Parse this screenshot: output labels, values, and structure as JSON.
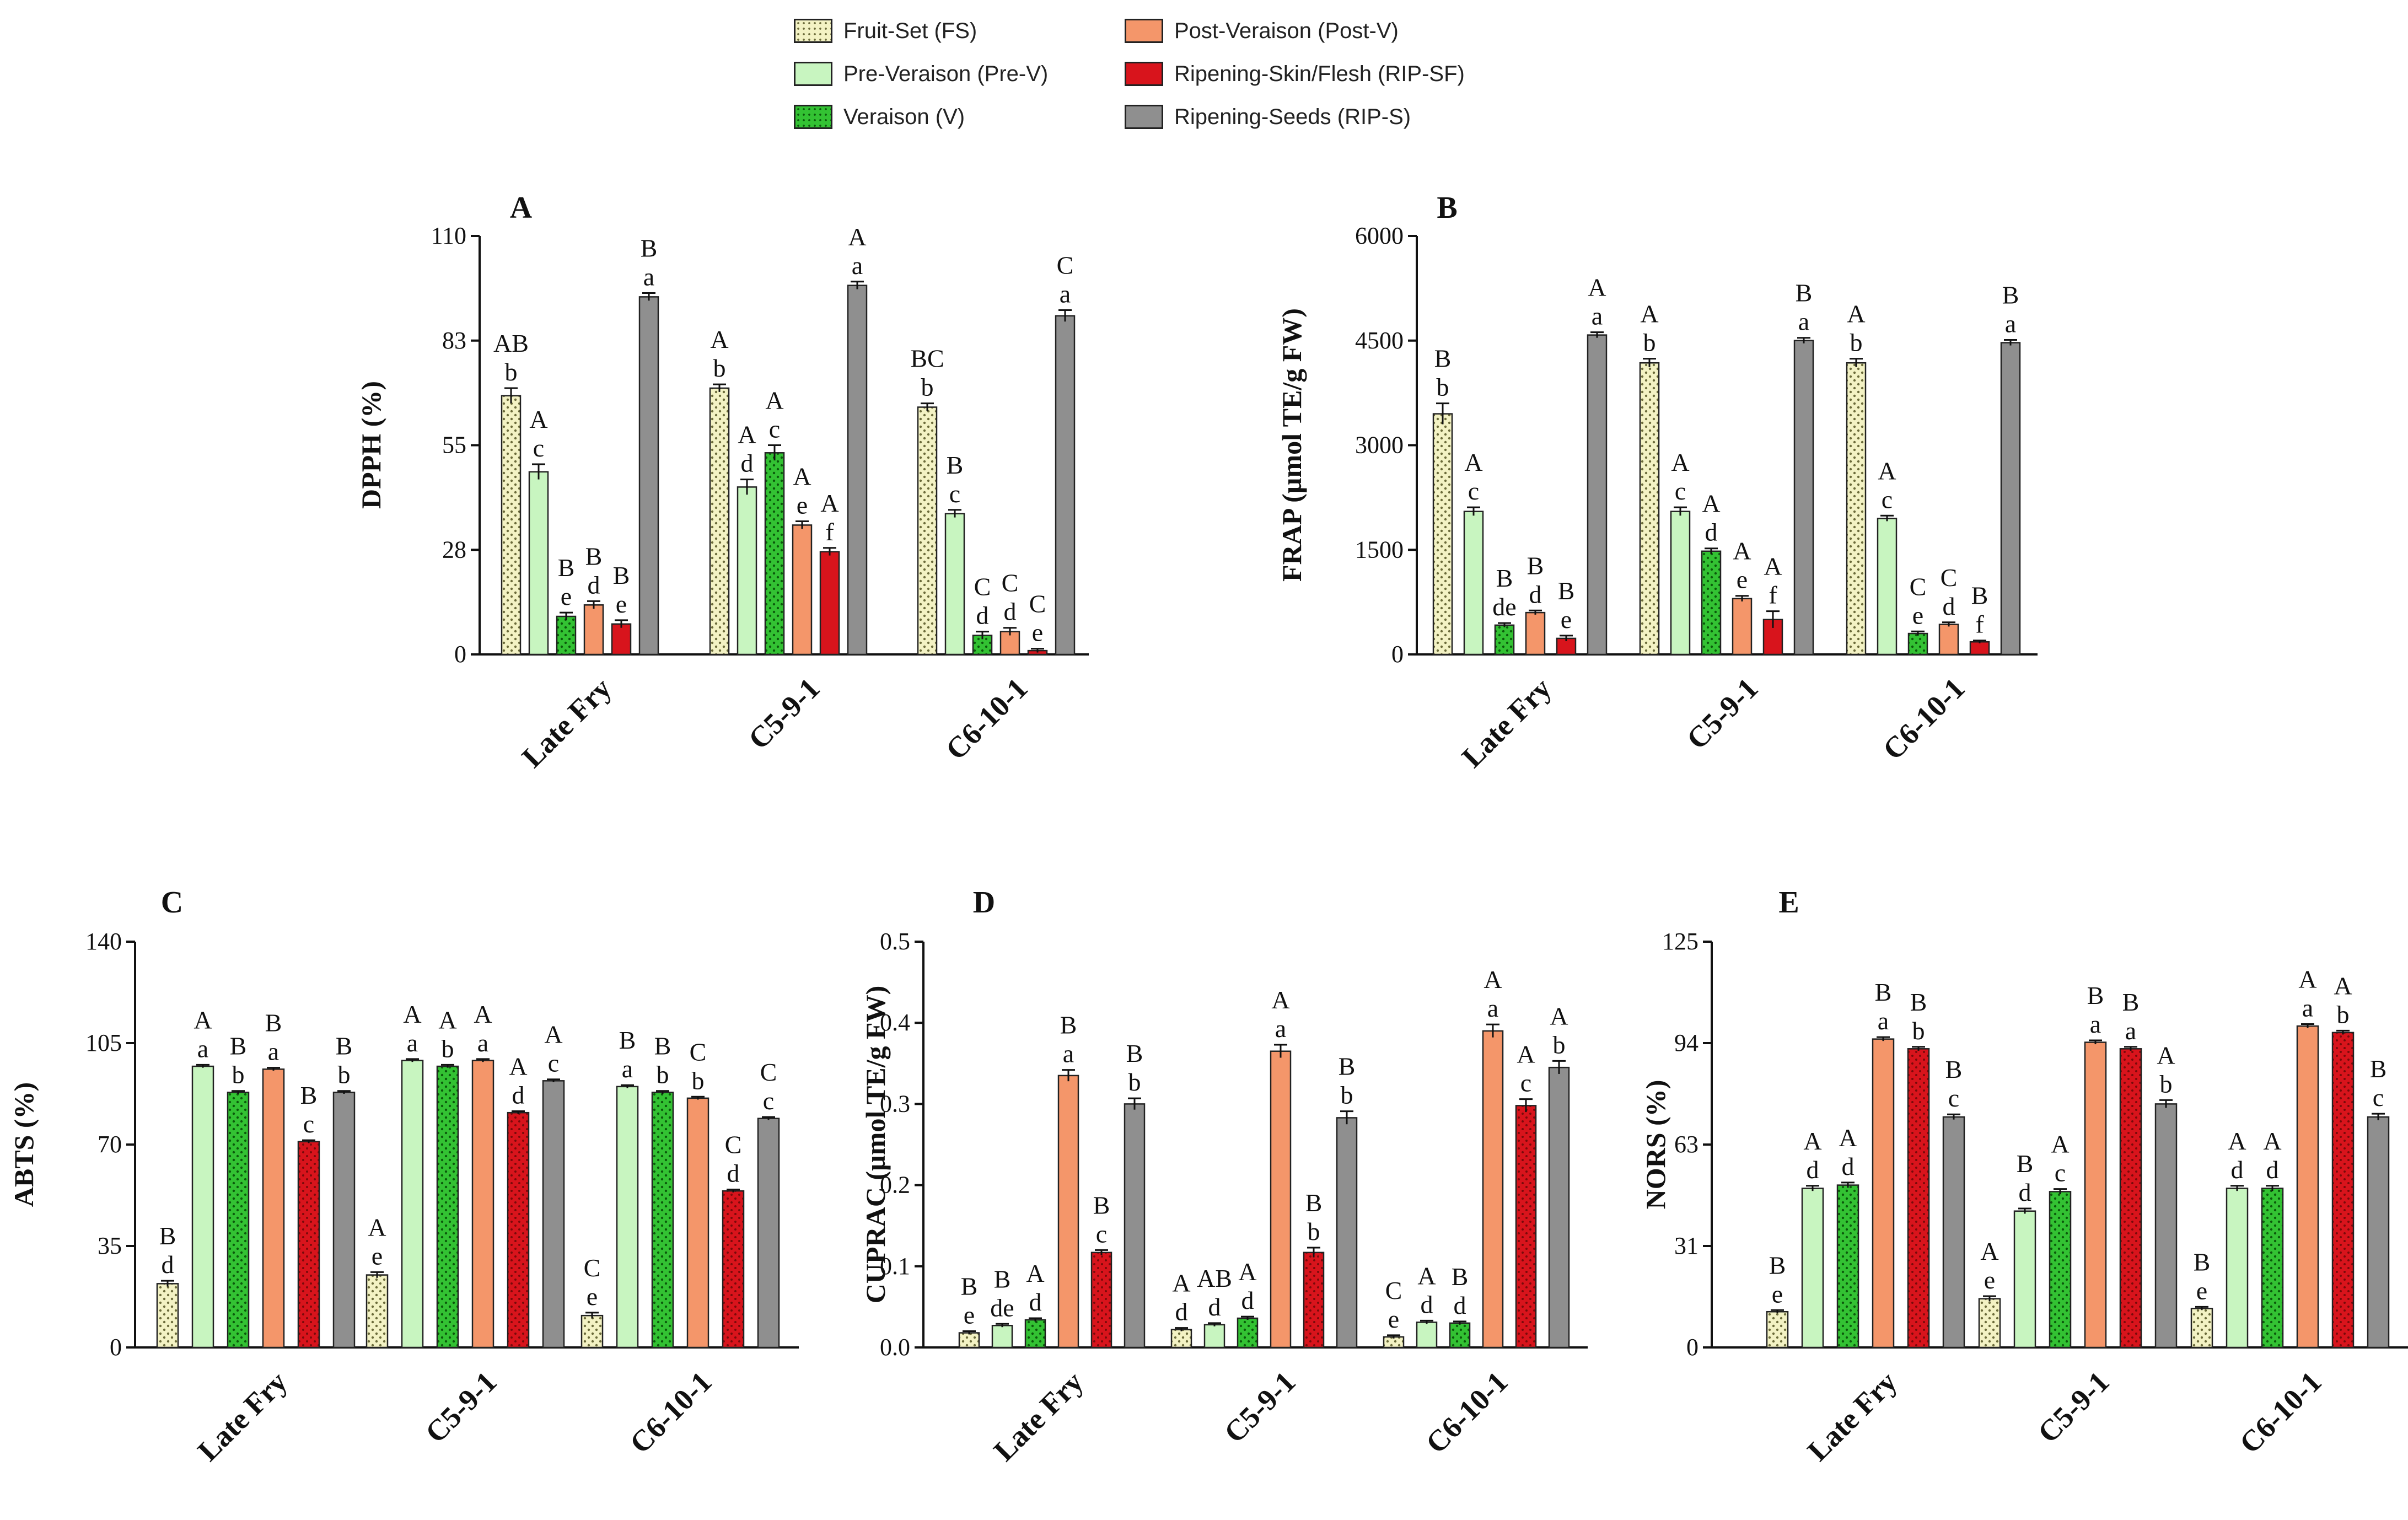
{
  "legend": [
    {
      "label": "Fruit-Set (FS)",
      "color": "#f3f2c4",
      "pattern": "dots"
    },
    {
      "label": "Pre-Veraison (Pre-V)",
      "color": "#c8f5c0",
      "pattern": "solid"
    },
    {
      "label": "Veraison (V)",
      "color": "#33c233",
      "pattern": "dots"
    },
    {
      "label": "Post-Veraison (Post-V)",
      "color": "#f4966a",
      "pattern": "solid"
    },
    {
      "label": "Ripening-Skin/Flesh (RIP-SF)",
      "color": "#d8141c",
      "pattern": "solid"
    },
    {
      "label": "Ripening-Seeds (RIP-S)",
      "color": "#8f8f8f",
      "pattern": "solid"
    }
  ],
  "chart_data": [
    {
      "panel": "A",
      "type": "bar",
      "ylabel": "DPPH (%)",
      "ylim": [
        0,
        110
      ],
      "yticks": [
        "0",
        "28",
        "55",
        "83",
        "110"
      ],
      "categories": [
        "Late Fry",
        "C5-9-1",
        "C6-10-1"
      ],
      "series": [
        {
          "name": "Fruit-Set (FS)",
          "values": [
            68,
            70,
            65
          ],
          "errors": [
            2,
            1,
            1
          ],
          "letters": [
            [
              "AB",
              "b"
            ],
            [
              "A",
              "b"
            ],
            [
              "BC",
              "b"
            ]
          ]
        },
        {
          "name": "Pre-Veraison (Pre-V)",
          "values": [
            48,
            44,
            37
          ],
          "errors": [
            2,
            2,
            1
          ],
          "letters": [
            [
              "A",
              "c"
            ],
            [
              "A",
              "d"
            ],
            [
              "B",
              "c"
            ]
          ]
        },
        {
          "name": "Veraison (V)",
          "values": [
            10,
            53,
            5
          ],
          "errors": [
            1,
            2,
            1
          ],
          "letters": [
            [
              "B",
              "e"
            ],
            [
              "A",
              "c"
            ],
            [
              "C",
              "d"
            ]
          ]
        },
        {
          "name": "Post-Veraison (Post-V)",
          "values": [
            13,
            34,
            6
          ],
          "errors": [
            1,
            1,
            1
          ],
          "letters": [
            [
              "B",
              "d"
            ],
            [
              "A",
              "e"
            ],
            [
              "C",
              "d"
            ]
          ]
        },
        {
          "name": "Ripening-Skin/Flesh (RIP-SF)",
          "values": [
            8,
            27,
            1
          ],
          "errors": [
            1,
            1,
            0.5
          ],
          "letters": [
            [
              "B",
              "e"
            ],
            [
              "A",
              "f"
            ],
            [
              "C",
              "e"
            ]
          ]
        },
        {
          "name": "Ripening-Seeds (RIP-S)",
          "values": [
            94,
            97,
            89
          ],
          "errors": [
            1,
            1,
            1.5
          ],
          "letters": [
            [
              "B",
              "a"
            ],
            [
              "A",
              "a"
            ],
            [
              "C",
              "a"
            ]
          ]
        }
      ]
    },
    {
      "panel": "B",
      "type": "bar",
      "ylabel": "FRAP (µmol TE/g FW)",
      "ylim": [
        0,
        6000
      ],
      "yticks": [
        "0",
        "1500",
        "3000",
        "4500",
        "6000"
      ],
      "categories": [
        "Late Fry",
        "C5-9-1",
        "C6-10-1"
      ],
      "series": [
        {
          "name": "Fruit-Set (FS)",
          "values": [
            3450,
            4180,
            4180
          ],
          "errors": [
            150,
            60,
            60
          ],
          "letters": [
            [
              "B",
              "b"
            ],
            [
              "A",
              "b"
            ],
            [
              "A",
              "b"
            ]
          ]
        },
        {
          "name": "Pre-Veraison (Pre-V)",
          "values": [
            2050,
            2050,
            1950
          ],
          "errors": [
            60,
            60,
            40
          ],
          "letters": [
            [
              "A",
              "c"
            ],
            [
              "A",
              "c"
            ],
            [
              "A",
              "c"
            ]
          ]
        },
        {
          "name": "Veraison (V)",
          "values": [
            420,
            1480,
            300
          ],
          "errors": [
            30,
            40,
            30
          ],
          "letters": [
            [
              "B",
              "de"
            ],
            [
              "A",
              "d"
            ],
            [
              "C",
              "e"
            ]
          ]
        },
        {
          "name": "Post-Veraison (Post-V)",
          "values": [
            600,
            800,
            430
          ],
          "errors": [
            30,
            40,
            30
          ],
          "letters": [
            [
              "B",
              "d"
            ],
            [
              "A",
              "e"
            ],
            [
              "C",
              "d"
            ]
          ]
        },
        {
          "name": "Ripening-Skin/Flesh (RIP-SF)",
          "values": [
            230,
            500,
            180
          ],
          "errors": [
            40,
            120,
            20
          ],
          "letters": [
            [
              "B",
              "e"
            ],
            [
              "A",
              "f"
            ],
            [
              "B",
              "f"
            ]
          ]
        },
        {
          "name": "Ripening-Seeds (RIP-S)",
          "values": [
            4580,
            4500,
            4470
          ],
          "errors": [
            40,
            40,
            40
          ],
          "letters": [
            [
              "A",
              "a"
            ],
            [
              "B",
              "a"
            ],
            [
              "B",
              "a"
            ]
          ]
        }
      ]
    },
    {
      "panel": "C",
      "type": "bar",
      "ylabel": "ABTS (%)",
      "ylim": [
        0,
        140
      ],
      "yticks": [
        "0",
        "35",
        "70",
        "105",
        "140"
      ],
      "categories": [
        "Late Fry",
        "C5-9-1",
        "C6-10-1"
      ],
      "series": [
        {
          "name": "Fruit-Set (FS)",
          "values": [
            22,
            25,
            11
          ],
          "errors": [
            1,
            1,
            1
          ],
          "letters": [
            [
              "B",
              "d"
            ],
            [
              "A",
              "e"
            ],
            [
              "C",
              "e"
            ]
          ]
        },
        {
          "name": "Pre-Veraison (Pre-V)",
          "values": [
            97,
            99,
            90
          ],
          "errors": [
            0.5,
            0.5,
            0.5
          ],
          "letters": [
            [
              "A",
              "a"
            ],
            [
              "A",
              "a"
            ],
            [
              "B",
              "a"
            ]
          ]
        },
        {
          "name": "Veraison (V)",
          "values": [
            88,
            97,
            88
          ],
          "errors": [
            0.5,
            0.5,
            0.5
          ],
          "letters": [
            [
              "B",
              "b"
            ],
            [
              "A",
              "b"
            ],
            [
              "B",
              "b"
            ]
          ]
        },
        {
          "name": "Post-Veraison (Post-V)",
          "values": [
            96,
            99,
            86
          ],
          "errors": [
            0.5,
            0.5,
            0.5
          ],
          "letters": [
            [
              "B",
              "a"
            ],
            [
              "A",
              "a"
            ],
            [
              "C",
              "b"
            ]
          ]
        },
        {
          "name": "Ripening-Skin/Flesh (RIP-SF)",
          "values": [
            71,
            81,
            54
          ],
          "errors": [
            0.5,
            0.5,
            0.5
          ],
          "letters": [
            [
              "B",
              "c"
            ],
            [
              "A",
              "d"
            ],
            [
              "C",
              "d"
            ]
          ]
        },
        {
          "name": "Ripening-Seeds (RIP-S)",
          "values": [
            88,
            92,
            79
          ],
          "errors": [
            0.5,
            0.5,
            0.5
          ],
          "letters": [
            [
              "B",
              "b"
            ],
            [
              "A",
              "c"
            ],
            [
              "C",
              "c"
            ]
          ]
        }
      ]
    },
    {
      "panel": "D",
      "type": "bar",
      "ylabel": "CUPRAC (µmol TE/g FW)",
      "ylim": [
        0,
        0.5
      ],
      "yticks": [
        "0.0",
        "0.1",
        "0.2",
        "0.3",
        "0.4",
        "0.5"
      ],
      "categories": [
        "Late Fry",
        "C5-9-1",
        "C6-10-1"
      ],
      "series": [
        {
          "name": "Fruit-Set (FS)",
          "values": [
            0.018,
            0.022,
            0.013
          ],
          "errors": [
            0.002,
            0.002,
            0.002
          ],
          "letters": [
            [
              "B",
              "e"
            ],
            [
              "A",
              "d"
            ],
            [
              "C",
              "e"
            ]
          ]
        },
        {
          "name": "Pre-Veraison (Pre-V)",
          "values": [
            0.027,
            0.028,
            0.031
          ],
          "errors": [
            0.002,
            0.002,
            0.002
          ],
          "letters": [
            [
              "B",
              "de"
            ],
            [
              "AB",
              "d"
            ],
            [
              "A",
              "d"
            ]
          ]
        },
        {
          "name": "Veraison (V)",
          "values": [
            0.034,
            0.036,
            0.03
          ],
          "errors": [
            0.002,
            0.002,
            0.002
          ],
          "letters": [
            [
              "A",
              "d"
            ],
            [
              "A",
              "d"
            ],
            [
              "B",
              "d"
            ]
          ]
        },
        {
          "name": "Post-Veraison (Post-V)",
          "values": [
            0.335,
            0.365,
            0.39
          ],
          "errors": [
            0.007,
            0.008,
            0.008
          ],
          "letters": [
            [
              "B",
              "a"
            ],
            [
              "A",
              "a"
            ],
            [
              "A",
              "a"
            ]
          ]
        },
        {
          "name": "Ripening-Skin/Flesh (RIP-SF)",
          "values": [
            0.117,
            0.117,
            0.298
          ],
          "errors": [
            0.003,
            0.006,
            0.008
          ],
          "letters": [
            [
              "B",
              "c"
            ],
            [
              "B",
              "b"
            ],
            [
              "A",
              "c"
            ]
          ]
        },
        {
          "name": "Ripening-Seeds (RIP-S)",
          "values": [
            0.3,
            0.283,
            0.345
          ],
          "errors": [
            0.007,
            0.008,
            0.008
          ],
          "letters": [
            [
              "B",
              "b"
            ],
            [
              "B",
              "b"
            ],
            [
              "A",
              "b"
            ]
          ]
        }
      ]
    },
    {
      "panel": "E",
      "type": "bar",
      "ylabel": "NORS (%)",
      "ylim": [
        0,
        125
      ],
      "yticks": [
        "0",
        "31",
        "63",
        "94",
        "125"
      ],
      "categories": [
        "Late Fry",
        "C5-9-1",
        "C6-10-1"
      ],
      "series": [
        {
          "name": "Fruit-Set (FS)",
          "values": [
            11,
            15,
            12
          ],
          "errors": [
            0.5,
            0.8,
            0.5
          ],
          "letters": [
            [
              "B",
              "e"
            ],
            [
              "A",
              "e"
            ],
            [
              "B",
              "e"
            ]
          ]
        },
        {
          "name": "Pre-Veraison (Pre-V)",
          "values": [
            49,
            42,
            49
          ],
          "errors": [
            0.8,
            0.8,
            0.8
          ],
          "letters": [
            [
              "A",
              "d"
            ],
            [
              "B",
              "d"
            ],
            [
              "A",
              "d"
            ]
          ]
        },
        {
          "name": "Veraison (V)",
          "values": [
            50,
            48,
            49
          ],
          "errors": [
            0.8,
            0.8,
            0.8
          ],
          "letters": [
            [
              "A",
              "d"
            ],
            [
              "A",
              "c"
            ],
            [
              "A",
              "d"
            ]
          ]
        },
        {
          "name": "Post-Veraison (Post-V)",
          "values": [
            95,
            94,
            99
          ],
          "errors": [
            0.6,
            0.6,
            0.6
          ],
          "letters": [
            [
              "B",
              "a"
            ],
            [
              "B",
              "a"
            ],
            [
              "A",
              "a"
            ]
          ]
        },
        {
          "name": "Ripening-Skin/Flesh (RIP-SF)",
          "values": [
            92,
            92,
            97
          ],
          "errors": [
            0.6,
            0.6,
            0.6
          ],
          "letters": [
            [
              "B",
              "b"
            ],
            [
              "B",
              "a"
            ],
            [
              "A",
              "b"
            ]
          ]
        },
        {
          "name": "Ripening-Seeds (RIP-S)",
          "values": [
            71,
            75,
            71
          ],
          "errors": [
            0.8,
            1.2,
            1.0
          ],
          "letters": [
            [
              "B",
              "c"
            ],
            [
              "A",
              "b"
            ],
            [
              "B",
              "c"
            ]
          ]
        }
      ]
    }
  ]
}
